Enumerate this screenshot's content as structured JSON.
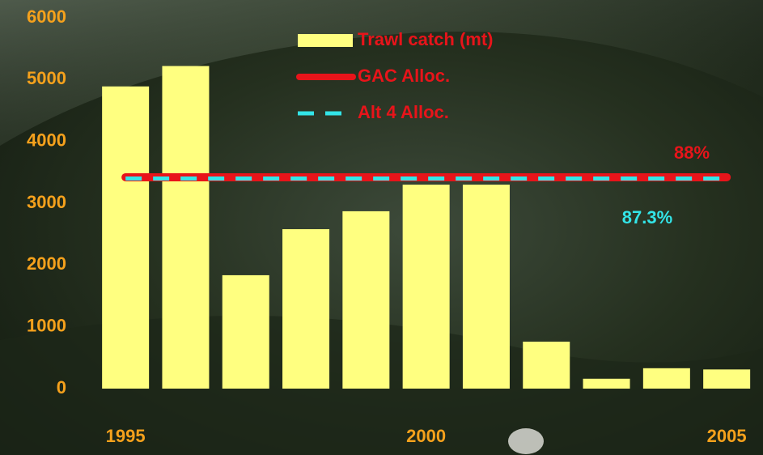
{
  "chart_data": {
    "type": "bar",
    "categories": [
      "1995",
      null,
      null,
      null,
      null,
      "2000",
      null,
      null,
      null,
      null,
      "2005"
    ],
    "series": [
      {
        "name": "Trawl catch (mt)",
        "type": "bar",
        "color": "#ffff80",
        "values": [
          4890,
          5220,
          1835,
          2580,
          2870,
          3300,
          3300,
          760,
          160,
          330,
          310
        ]
      },
      {
        "name": "GAC Alloc.",
        "type": "line",
        "color": "#e8141a",
        "values": [
          3420,
          3420,
          3420,
          3420,
          3420,
          3420,
          3420,
          3420,
          3420,
          3420,
          3420
        ]
      },
      {
        "name": "Alt 4 Alloc.",
        "type": "dashed-line",
        "color": "#33e5e8",
        "values": [
          3400,
          3400,
          3400,
          3400,
          3400,
          3400,
          3400,
          3400,
          3400,
          3400,
          3400
        ]
      }
    ],
    "annotations": [
      {
        "text": "88%",
        "color": "#e8141a"
      },
      {
        "text": "87.3%",
        "color": "#33e5e8"
      }
    ],
    "ylim": [
      0,
      6000
    ],
    "yticks": [
      0,
      1000,
      2000,
      3000,
      4000,
      5000,
      6000
    ],
    "grid": false,
    "legend": "top",
    "label_color": "#f5a11c"
  }
}
